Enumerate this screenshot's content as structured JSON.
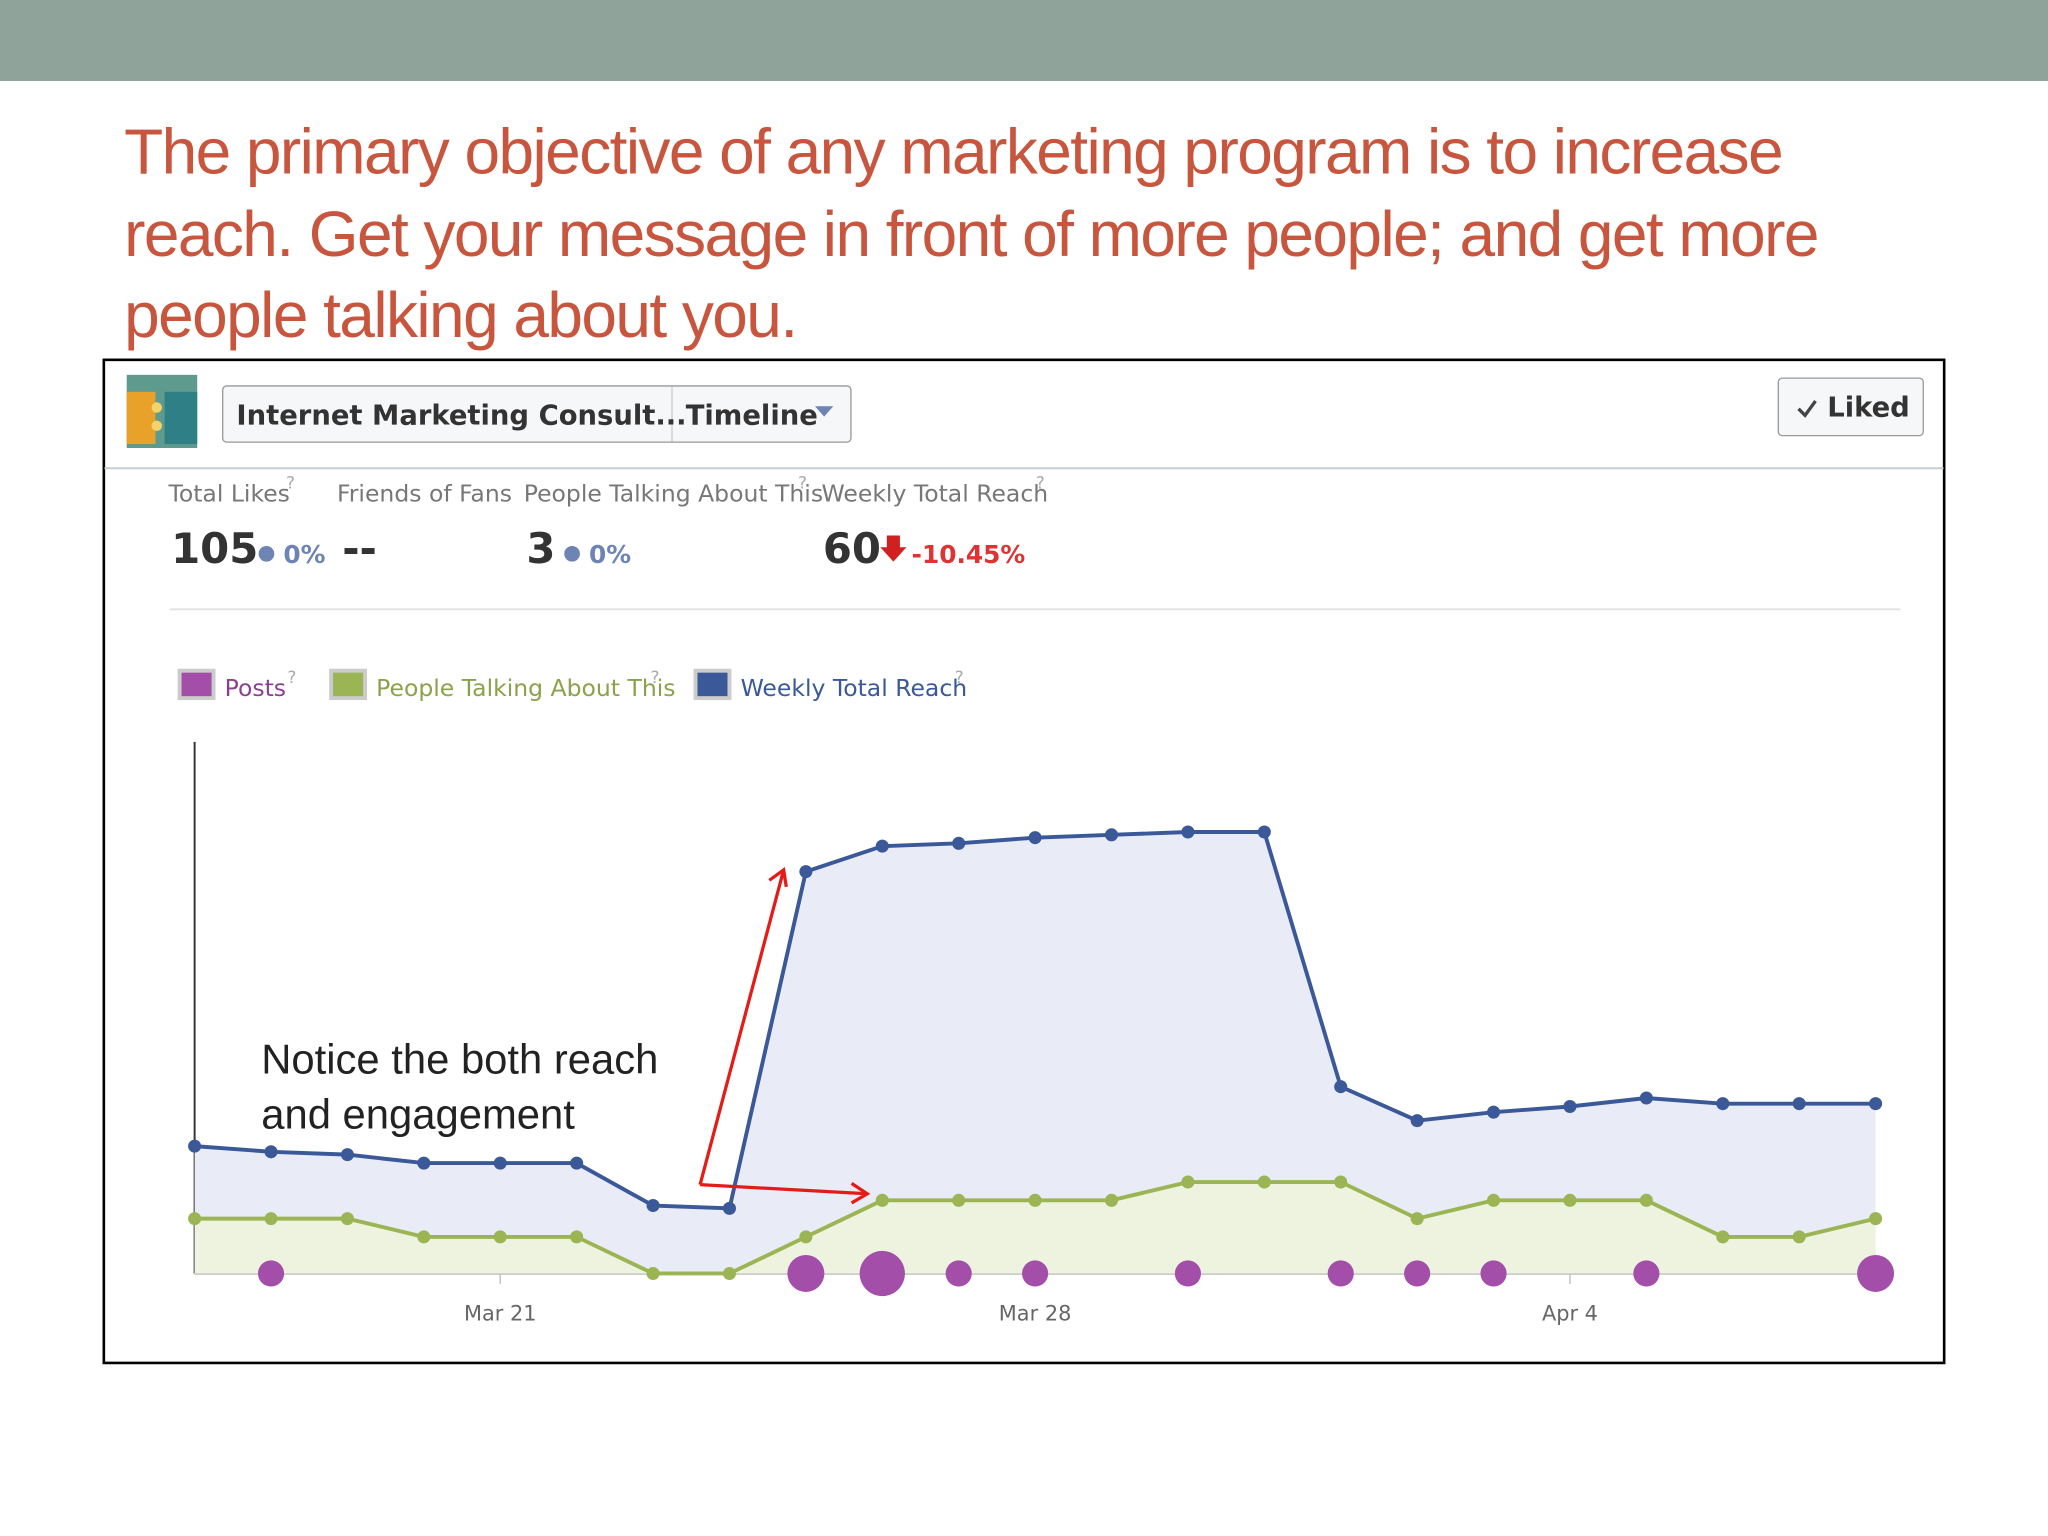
{
  "slide": {
    "title_lines": [
      "The primary objective of any marketing program is to increase",
      "reach. Get your message in front of more people; and get more",
      "people talking about you."
    ]
  },
  "insights": {
    "page_name": "Internet Marketing Consult...",
    "view": "Timeline",
    "like_button": "Liked",
    "help_mark": "?",
    "stats": [
      {
        "label": "Total Likes",
        "value": "105",
        "change": "0%"
      },
      {
        "label": "Friends of Fans",
        "value": "--"
      },
      {
        "label": "People Talking About This",
        "value": "3",
        "change": "0%"
      },
      {
        "label": "Weekly Total Reach",
        "value": "60",
        "change": "-10.45%"
      }
    ]
  },
  "chart_data": {
    "type": "line",
    "categories": [
      null,
      null,
      null,
      null,
      "Mar 21",
      null,
      null,
      null,
      null,
      null,
      null,
      "Mar 28",
      null,
      null,
      null,
      null,
      null,
      null,
      "Apr 4",
      null,
      null,
      null,
      null
    ],
    "series": [
      {
        "name": "Posts",
        "color": "#a34ea8",
        "style": "bubble",
        "values": [
          0,
          1,
          0,
          0,
          0,
          0,
          0,
          0,
          2,
          3,
          1,
          1,
          0,
          1,
          0,
          1,
          1,
          1,
          0,
          1,
          0,
          0,
          2
        ]
      },
      {
        "name": "People Talking About This",
        "color": "#9bb554",
        "style": "area",
        "values": [
          3,
          3,
          3,
          2,
          2,
          2,
          0,
          0,
          2,
          4,
          4,
          4,
          4,
          5,
          5,
          5,
          3,
          4,
          4,
          4,
          2,
          2,
          3
        ]
      },
      {
        "name": "Weekly Total Reach",
        "color": "#3b5998",
        "style": "area",
        "values": [
          45,
          43,
          42,
          39,
          39,
          39,
          24,
          23,
          142,
          151,
          152,
          154,
          155,
          156,
          156,
          66,
          54,
          57,
          59,
          62,
          60,
          60,
          60
        ]
      }
    ],
    "annotation": [
      "Notice the both reach",
      "and engagement"
    ]
  }
}
